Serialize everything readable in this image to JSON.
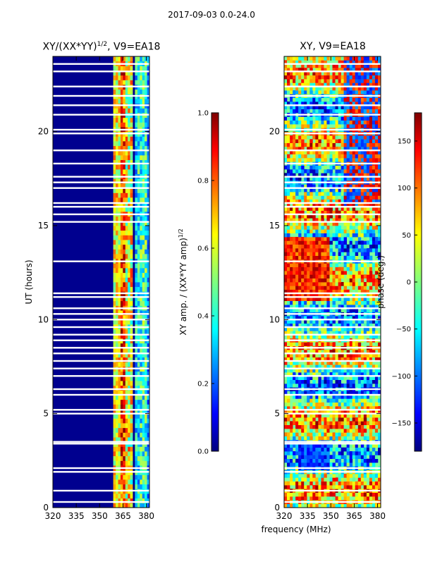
{
  "suptitle": "2017-09-03 0.0-24.0",
  "chart_data": [
    {
      "type": "heatmap",
      "title": "XY/(XX*YY)^1/2, V9=EA18",
      "title_main": "XY/(XX*YY)",
      "title_sup": "1/2",
      "title_tail": ", V9=EA18",
      "xlabel": "",
      "ylabel": "UT (hours)",
      "xlim": [
        320,
        382
      ],
      "ylim": [
        0,
        24
      ],
      "xticks": [
        320,
        335,
        350,
        365,
        380
      ],
      "yticks": [
        0,
        5,
        10,
        15,
        20
      ],
      "colorbar": {
        "label": "XY amp. / (XX*YY amp)^1/2",
        "label_main": "XY amp. / (XX*YY amp)",
        "label_sup": "1/2",
        "range": [
          0.0,
          1.0
        ],
        "ticks": [
          "0.0",
          "0.2",
          "0.4",
          "0.6",
          "0.8",
          "1.0"
        ],
        "colormap": "jet"
      }
    },
    {
      "type": "heatmap",
      "title": "XY, V9=EA18",
      "xlabel": "frequency (MHz)",
      "ylabel": "",
      "xlim": [
        320,
        382
      ],
      "ylim": [
        0,
        24
      ],
      "xticks": [
        320,
        335,
        350,
        365,
        380
      ],
      "yticks": [
        0,
        5,
        10,
        15,
        20
      ],
      "colorbar": {
        "label": "phase (deg.)",
        "range": [
          -180,
          180
        ],
        "ticks": [
          "150",
          "100",
          "50",
          "0",
          "−50",
          "−100",
          "−150"
        ],
        "tick_values": [
          150,
          100,
          50,
          0,
          -50,
          -100,
          -150
        ],
        "colormap": "jet"
      }
    }
  ],
  "colors": {
    "jet": [
      "#00007f",
      "#0000ff",
      "#007fff",
      "#00ffff",
      "#7fff7f",
      "#ffff00",
      "#ff7f00",
      "#ff0000",
      "#7f0000"
    ]
  },
  "flagged_hours": [
    0.3,
    0.9,
    1.9,
    2.1,
    3.4,
    3.5,
    5.0,
    5.2,
    6.0,
    6.3,
    7.0,
    7.4,
    7.8,
    8.2,
    8.5,
    8.9,
    9.2,
    9.6,
    10.0,
    10.3,
    10.6,
    11.2,
    11.4,
    13.1,
    15.2,
    15.6,
    16.0,
    16.2,
    17.0,
    17.3,
    17.6,
    18.3,
    19.0,
    19.9,
    20.1,
    20.9,
    21.4,
    21.9,
    22.4,
    23.2,
    23.6
  ]
}
